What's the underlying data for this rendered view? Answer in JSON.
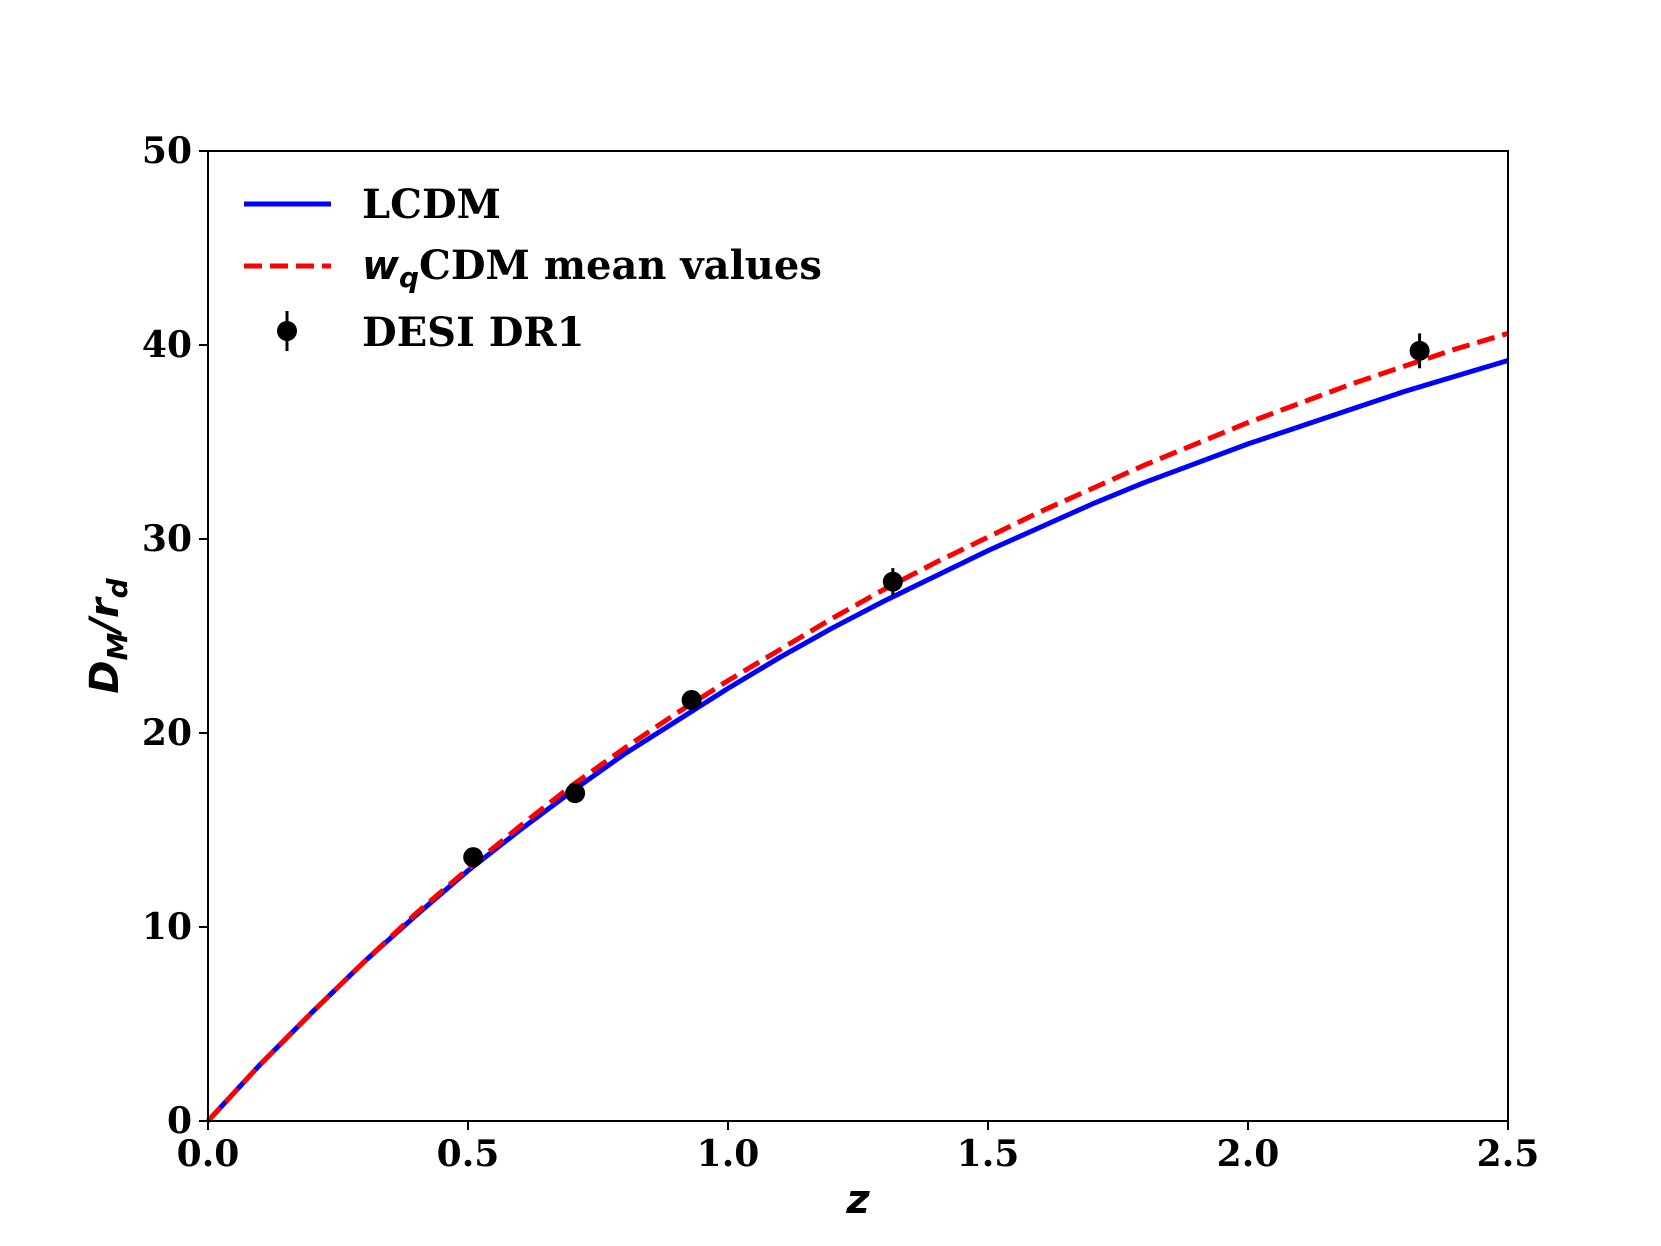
{
  "chart_data": {
    "type": "line",
    "xlabel": "z",
    "ylabel": {
      "main": "D",
      "sub1": "M",
      "sep": "/r",
      "sub2": "d"
    },
    "xlim": [
      0.0,
      2.5
    ],
    "ylim": [
      0,
      50
    ],
    "xticks": [
      "0.0",
      "0.5",
      "1.0",
      "1.5",
      "2.0",
      "2.5"
    ],
    "yticks": [
      "0",
      "10",
      "20",
      "30",
      "40",
      "50"
    ],
    "grid": false,
    "legend_position": "top-left",
    "series": [
      {
        "name": "LCDM",
        "style": "solid",
        "color": "#0000ff",
        "x": [
          0.0,
          0.1,
          0.2,
          0.3,
          0.4,
          0.5,
          0.6,
          0.7,
          0.8,
          0.9,
          1.0,
          1.1,
          1.2,
          1.3,
          1.4,
          1.5,
          1.6,
          1.7,
          1.8,
          1.9,
          2.0,
          2.1,
          2.2,
          2.3,
          2.4,
          2.5
        ],
        "y": [
          0.0,
          2.9,
          5.6,
          8.2,
          10.6,
          12.9,
          15.0,
          17.0,
          18.9,
          20.6,
          22.3,
          23.9,
          25.4,
          26.8,
          28.1,
          29.4,
          30.6,
          31.8,
          32.9,
          33.9,
          34.9,
          35.8,
          36.7,
          37.6,
          38.4,
          39.2
        ]
      },
      {
        "name_main": "w",
        "name_sub": "q",
        "name_rest": "CDM mean values",
        "style": "dashed",
        "color": "#ff0000",
        "x": [
          0.0,
          0.1,
          0.2,
          0.3,
          0.4,
          0.5,
          0.6,
          0.7,
          0.8,
          0.9,
          1.0,
          1.1,
          1.2,
          1.3,
          1.4,
          1.5,
          1.6,
          1.7,
          1.8,
          1.9,
          2.0,
          2.1,
          2.2,
          2.3,
          2.4,
          2.5
        ],
        "y": [
          0.0,
          2.9,
          5.6,
          8.2,
          10.7,
          13.0,
          15.2,
          17.3,
          19.2,
          21.0,
          22.7,
          24.3,
          25.9,
          27.4,
          28.8,
          30.1,
          31.4,
          32.6,
          33.8,
          34.9,
          36.0,
          37.0,
          38.0,
          38.9,
          39.8,
          40.6
        ]
      }
    ],
    "points": {
      "name": "DESI DR1",
      "color": "#000000",
      "x": [
        0.51,
        0.706,
        0.93,
        1.317,
        2.33
      ],
      "y": [
        13.6,
        16.9,
        21.7,
        27.8,
        39.7
      ],
      "yerr": [
        0.3,
        0.3,
        0.3,
        0.7,
        0.9
      ]
    }
  }
}
